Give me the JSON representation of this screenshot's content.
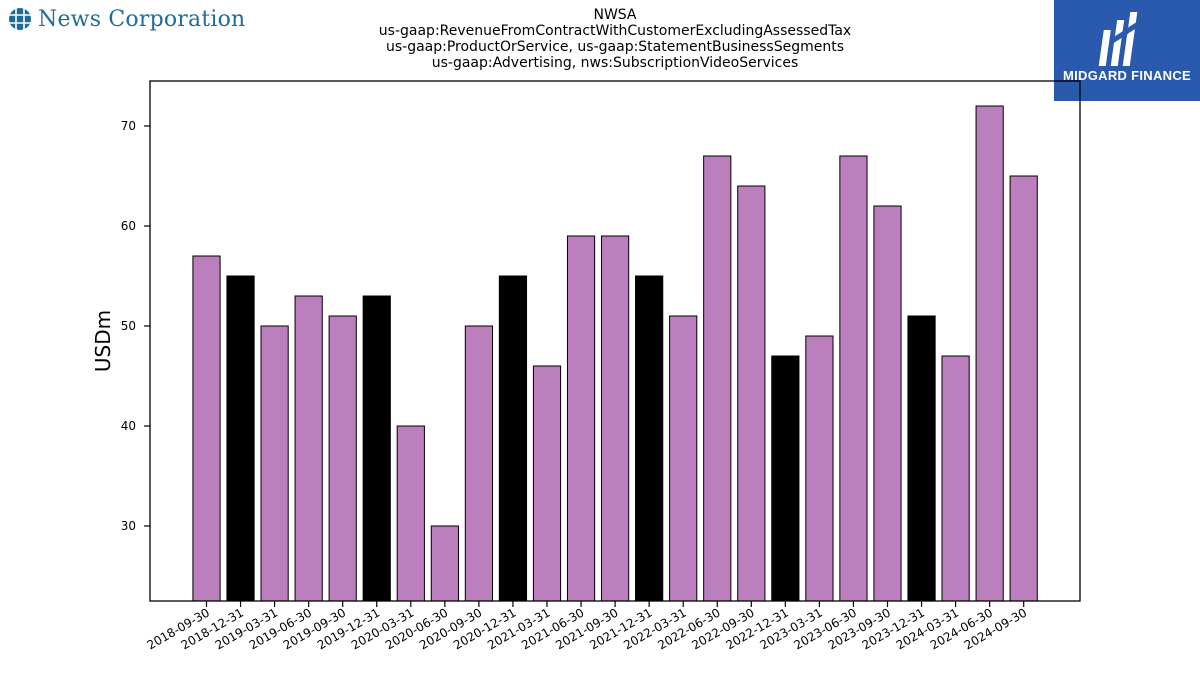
{
  "header": {
    "brand_name": "News Corporation",
    "brand_icon": "globe-grid-icon",
    "brand_color": "#1f6b9a"
  },
  "logo": {
    "text": "MIDGARD FINANCE",
    "background": "#2a5aad"
  },
  "chart_data": {
    "type": "bar",
    "title_lines": [
      "NWSA",
      "us-gaap:RevenueFromContractWithCustomerExcludingAssessedTax",
      "us-gaap:ProductOrService, us-gaap:StatementBusinessSegments",
      "us-gaap:Advertising, nws:SubscriptionVideoServices"
    ],
    "xlabel": "",
    "ylabel": "USDm",
    "ylim": [
      22.5,
      74.5
    ],
    "yticks": [
      30,
      40,
      50,
      60,
      70
    ],
    "grid": false,
    "colors": {
      "default": "#bb7fbd",
      "q4": "#000000"
    },
    "categories": [
      "2018-09-30",
      "2018-12-31",
      "2019-03-31",
      "2019-06-30",
      "2019-09-30",
      "2019-12-31",
      "2020-03-31",
      "2020-06-30",
      "2020-09-30",
      "2020-12-31",
      "2021-03-31",
      "2021-06-30",
      "2021-09-30",
      "2021-12-31",
      "2022-03-31",
      "2022-06-30",
      "2022-09-30",
      "2022-12-31",
      "2023-03-31",
      "2023-06-30",
      "2023-09-30",
      "2023-12-31",
      "2024-03-31",
      "2024-06-30",
      "2024-09-30"
    ],
    "values": [
      57,
      55,
      50,
      53,
      51,
      53,
      40,
      30,
      50,
      55,
      46,
      59,
      59,
      55,
      51,
      67,
      64,
      47,
      49,
      67,
      62,
      51,
      47,
      72,
      65
    ]
  }
}
